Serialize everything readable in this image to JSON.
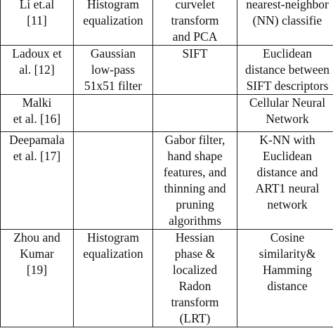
{
  "table": {
    "rows": [
      {
        "author": [
          "Li et.al",
          "[11]"
        ],
        "preprocessing": [
          "Histogram",
          "equalization"
        ],
        "feature_extraction": [
          "curvelet",
          "transform",
          "and PCA"
        ],
        "classifier": [
          "nearest-neighbor",
          "(NN) classifie"
        ]
      },
      {
        "author": [
          "Ladoux et",
          "al. [12]"
        ],
        "preprocessing": [
          "Gaussian",
          "low-pass",
          "51x51 filter"
        ],
        "feature_extraction": [
          "SIFT"
        ],
        "classifier": [
          "Euclidean",
          "distance between",
          "SIFT descriptors"
        ]
      },
      {
        "author": [
          "Malki",
          "et al. [16]"
        ],
        "preprocessing": [],
        "feature_extraction": [],
        "classifier": [
          "Cellular Neural",
          "Network"
        ]
      },
      {
        "author": [
          "Deepamala",
          "et al. [17]"
        ],
        "preprocessing": [],
        "feature_extraction": [
          "Gabor filter,",
          "hand shape",
          "features, and",
          "thinning and",
          "pruning",
          "algorithms"
        ],
        "classifier": [
          "K-NN with",
          "Euclidean",
          "distance and",
          "ART1 neural",
          "network"
        ]
      },
      {
        "author": [
          "Zhou and",
          "Kumar",
          "[19]"
        ],
        "preprocessing": [
          "Histogram",
          "equalization"
        ],
        "feature_extraction": [
          "Hessian",
          "phase &",
          "localized",
          "Radon",
          "transform",
          "(LRT)"
        ],
        "classifier": [
          "Cosine",
          "similarity&",
          "Hamming",
          "distance"
        ]
      }
    ]
  }
}
